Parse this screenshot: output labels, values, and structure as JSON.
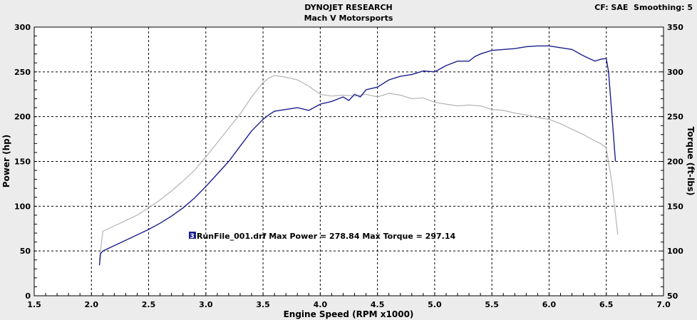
{
  "header": {
    "title": "DYNOJET RESEARCH",
    "subtitle": "Mach V Motorsports",
    "settings": "CF: SAE  Smoothing: 5"
  },
  "annotation": {
    "run_number": "3",
    "text": "RunFile_001.drf Max Power = 278.84     Max Torque = 297.14"
  },
  "colors": {
    "power": "#1a1f8c",
    "torque": "#b4b4b4",
    "plot_bg": "#ffffff",
    "outer_bg": "#ececec",
    "grid": "#000000",
    "badge": "#1a1f8c"
  },
  "chart_data": {
    "type": "line",
    "xlabel": "Engine Speed (RPM x1000)",
    "ylabel": "Power (hp)",
    "y2label": "Torque (ft-lbs)",
    "xlim": [
      1.5,
      7.0
    ],
    "ylim": [
      0,
      300
    ],
    "y2lim": [
      50,
      350
    ],
    "x_ticks": [
      "1.5",
      "2.0",
      "2.5",
      "3.0",
      "3.5",
      "4.0",
      "4.5",
      "5.0",
      "5.5",
      "6.0",
      "6.5",
      "7.0"
    ],
    "y_ticks": [
      "0",
      "50",
      "100",
      "150",
      "200",
      "250",
      "300"
    ],
    "y2_ticks": [
      "50",
      "100",
      "150",
      "200",
      "250",
      "300",
      "350"
    ],
    "grid": true,
    "series": [
      {
        "name": "Power",
        "axis": "left",
        "x": [
          2.07,
          2.08,
          2.1,
          2.2,
          2.3,
          2.4,
          2.5,
          2.6,
          2.7,
          2.8,
          2.9,
          3.0,
          3.1,
          3.2,
          3.3,
          3.4,
          3.5,
          3.55,
          3.6,
          3.7,
          3.8,
          3.9,
          4.0,
          4.1,
          4.2,
          4.25,
          4.3,
          4.35,
          4.4,
          4.5,
          4.6,
          4.7,
          4.8,
          4.9,
          5.0,
          5.1,
          5.2,
          5.3,
          5.35,
          5.4,
          5.5,
          5.6,
          5.7,
          5.8,
          5.9,
          6.0,
          6.1,
          6.2,
          6.3,
          6.4,
          6.45,
          6.5,
          6.52,
          6.55,
          6.58
        ],
        "y": [
          34,
          47,
          50,
          56,
          62,
          68,
          74,
          81,
          89,
          98,
          109,
          122,
          136,
          150,
          167,
          184,
          197,
          202,
          206,
          208,
          210,
          207,
          214,
          217,
          222,
          218,
          225,
          222,
          230,
          233,
          241,
          245,
          247,
          251,
          250,
          257,
          262,
          262,
          267,
          270,
          274,
          275,
          276,
          278,
          279,
          279,
          277,
          275,
          268,
          262,
          264,
          265,
          250,
          200,
          150
        ]
      },
      {
        "name": "Torque",
        "axis": "right",
        "x": [
          2.07,
          2.1,
          2.2,
          2.3,
          2.4,
          2.5,
          2.6,
          2.7,
          2.8,
          2.9,
          3.0,
          3.1,
          3.2,
          3.3,
          3.4,
          3.5,
          3.55,
          3.6,
          3.7,
          3.8,
          3.9,
          4.0,
          4.1,
          4.2,
          4.3,
          4.4,
          4.5,
          4.6,
          4.7,
          4.8,
          4.9,
          5.0,
          5.1,
          5.2,
          5.3,
          5.4,
          5.5,
          5.6,
          5.7,
          5.8,
          5.9,
          6.0,
          6.1,
          6.2,
          6.3,
          6.4,
          6.45,
          6.5,
          6.55,
          6.6
        ],
        "y": [
          90,
          122,
          128,
          134,
          140,
          148,
          157,
          167,
          178,
          190,
          205,
          221,
          237,
          253,
          272,
          288,
          293,
          296,
          294,
          291,
          284,
          275,
          273,
          274,
          273,
          275,
          272,
          276,
          274,
          270,
          271,
          266,
          264,
          262,
          263,
          262,
          258,
          257,
          254,
          252,
          249,
          247,
          242,
          236,
          230,
          223,
          220,
          215,
          175,
          118
        ]
      }
    ]
  }
}
